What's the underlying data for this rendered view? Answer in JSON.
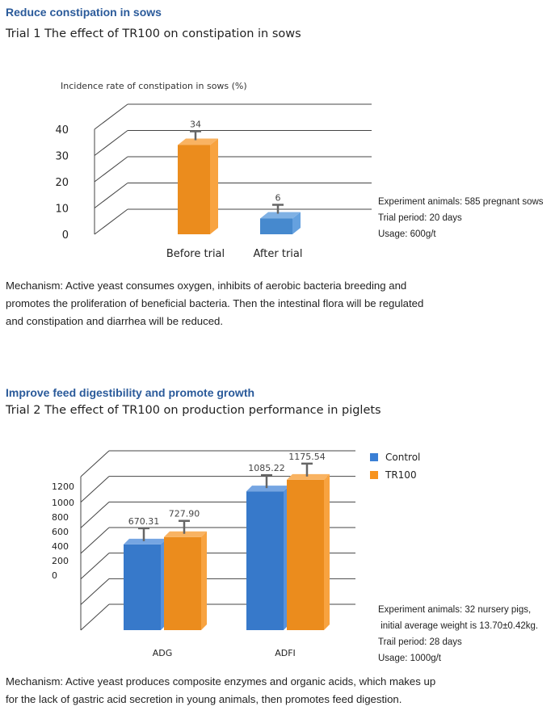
{
  "section1": {
    "heading": "Reduce constipation in sows",
    "trial_title": "Trial 1 The effect of TR100 on constipation in sows",
    "info": [
      "Experiment animals: 585 pregnant sows",
      "Trial period: 20 days",
      "Usage: 600g/t"
    ],
    "mechanism": [
      "Mechanism: Active yeast consumes oxygen, inhibits of aerobic bacteria breeding and",
      "promotes the proliferation of beneficial bacteria. Then the intestinal flora will be regulated",
      "and constipation and diarrhea will be reduced."
    ]
  },
  "section2": {
    "heading": "Improve feed digestibility and promote growth",
    "trial_title": "Trial 2 The effect of TR100 on production performance in piglets",
    "info": [
      "Experiment animals: 32 nursery pigs,",
      " initial average weight is 13.70±0.42kg.",
      "Trail period: 28 days",
      "Usage: 1000g/t"
    ],
    "mechanism": [
      "Mechanism: Active yeast produces composite enzymes and organic acids, which makes up",
      "for the lack of gastric acid secretion in young animals, then promotes feed digestion."
    ]
  },
  "chart_data": [
    {
      "type": "bar",
      "title": "",
      "ylabel": "Incidence rate of constipation in sows (%)",
      "xlabel": "",
      "categories": [
        "Before trial",
        "After trial"
      ],
      "values": [
        34,
        6
      ],
      "data_labels": [
        "34",
        "6"
      ],
      "bar_colors": [
        "#f7931e",
        "#4a90d9"
      ],
      "yticks": [
        "0",
        "10",
        "20",
        "30",
        "40"
      ],
      "ylim": [
        0,
        40
      ],
      "grid": true
    },
    {
      "type": "bar",
      "title": "",
      "xlabel": "",
      "ylabel": "",
      "categories": [
        "ADG",
        "ADFI"
      ],
      "series": [
        {
          "name": "Control",
          "values": [
            670.31,
            1085.22
          ],
          "color": "#3a7fd5"
        },
        {
          "name": "TR100",
          "values": [
            727.9,
            1175.54
          ],
          "color": "#f7931e"
        }
      ],
      "data_labels": [
        [
          "670.31",
          "1085.22"
        ],
        [
          "727.90",
          "1175.54"
        ]
      ],
      "yticks": [
        "0",
        "200",
        "400",
        "600",
        "800",
        "1000",
        "1200"
      ],
      "ylim": [
        0,
        1200
      ],
      "legend": "right",
      "grid": true
    }
  ]
}
